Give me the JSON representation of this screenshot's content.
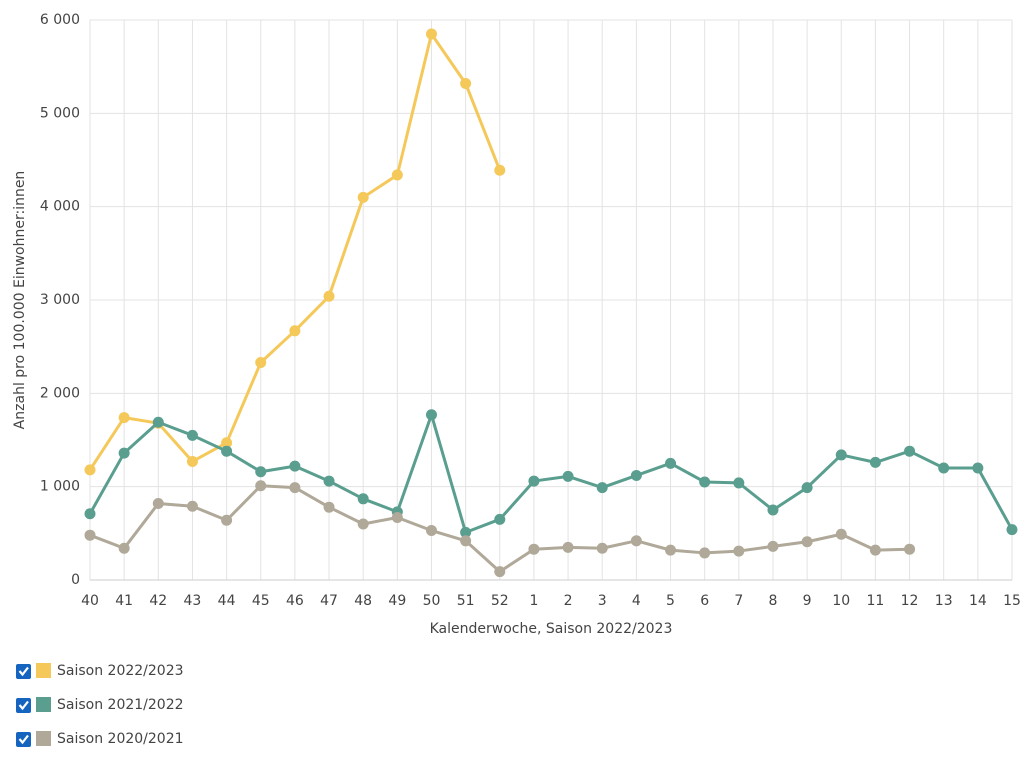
{
  "chart_data": {
    "type": "line",
    "ylabel": "Anzahl pro 100.000 Einwohner:innen",
    "xlabel": "Kalenderwoche, Saison 2022/2023",
    "categories": [
      "40",
      "41",
      "42",
      "43",
      "44",
      "45",
      "46",
      "47",
      "48",
      "49",
      "50",
      "51",
      "52",
      "1",
      "2",
      "3",
      "4",
      "5",
      "6",
      "7",
      "8",
      "9",
      "10",
      "11",
      "12",
      "13",
      "14",
      "15"
    ],
    "ylim": [
      0,
      6000
    ],
    "yticks": [
      0,
      {
        "value": 1000,
        "label": "1 000"
      },
      {
        "value": 2000,
        "label": "2 000"
      },
      {
        "value": 3000,
        "label": "3 000"
      },
      {
        "value": 4000,
        "label": "4 000"
      },
      {
        "value": 5000,
        "label": "5 000"
      },
      {
        "value": 6000,
        "label": "6 000"
      }
    ],
    "grid": true,
    "series": [
      {
        "name": "Saison 2022/2023",
        "color": "#f5c85a",
        "values": [
          1180,
          1740,
          1680,
          1270,
          1470,
          2330,
          2670,
          3040,
          4100,
          4340,
          5850,
          5320,
          4390,
          null,
          null,
          null,
          null,
          null,
          null,
          null,
          null,
          null,
          null,
          null,
          null,
          null,
          null,
          null
        ]
      },
      {
        "name": "Saison 2021/2022",
        "color": "#5a9e8f",
        "values": [
          710,
          1360,
          1690,
          1550,
          1380,
          1160,
          1220,
          1060,
          870,
          730,
          1770,
          510,
          650,
          1060,
          1110,
          990,
          1120,
          1250,
          1050,
          1040,
          750,
          990,
          1340,
          1260,
          1380,
          1200,
          1200,
          540
        ]
      },
      {
        "name": "Saison 2020/2021",
        "color": "#b0a898",
        "values": [
          480,
          340,
          820,
          790,
          640,
          1010,
          990,
          780,
          600,
          670,
          530,
          420,
          90,
          330,
          350,
          340,
          420,
          320,
          290,
          310,
          360,
          410,
          490,
          320,
          330,
          null,
          null,
          null
        ]
      }
    ]
  }
}
